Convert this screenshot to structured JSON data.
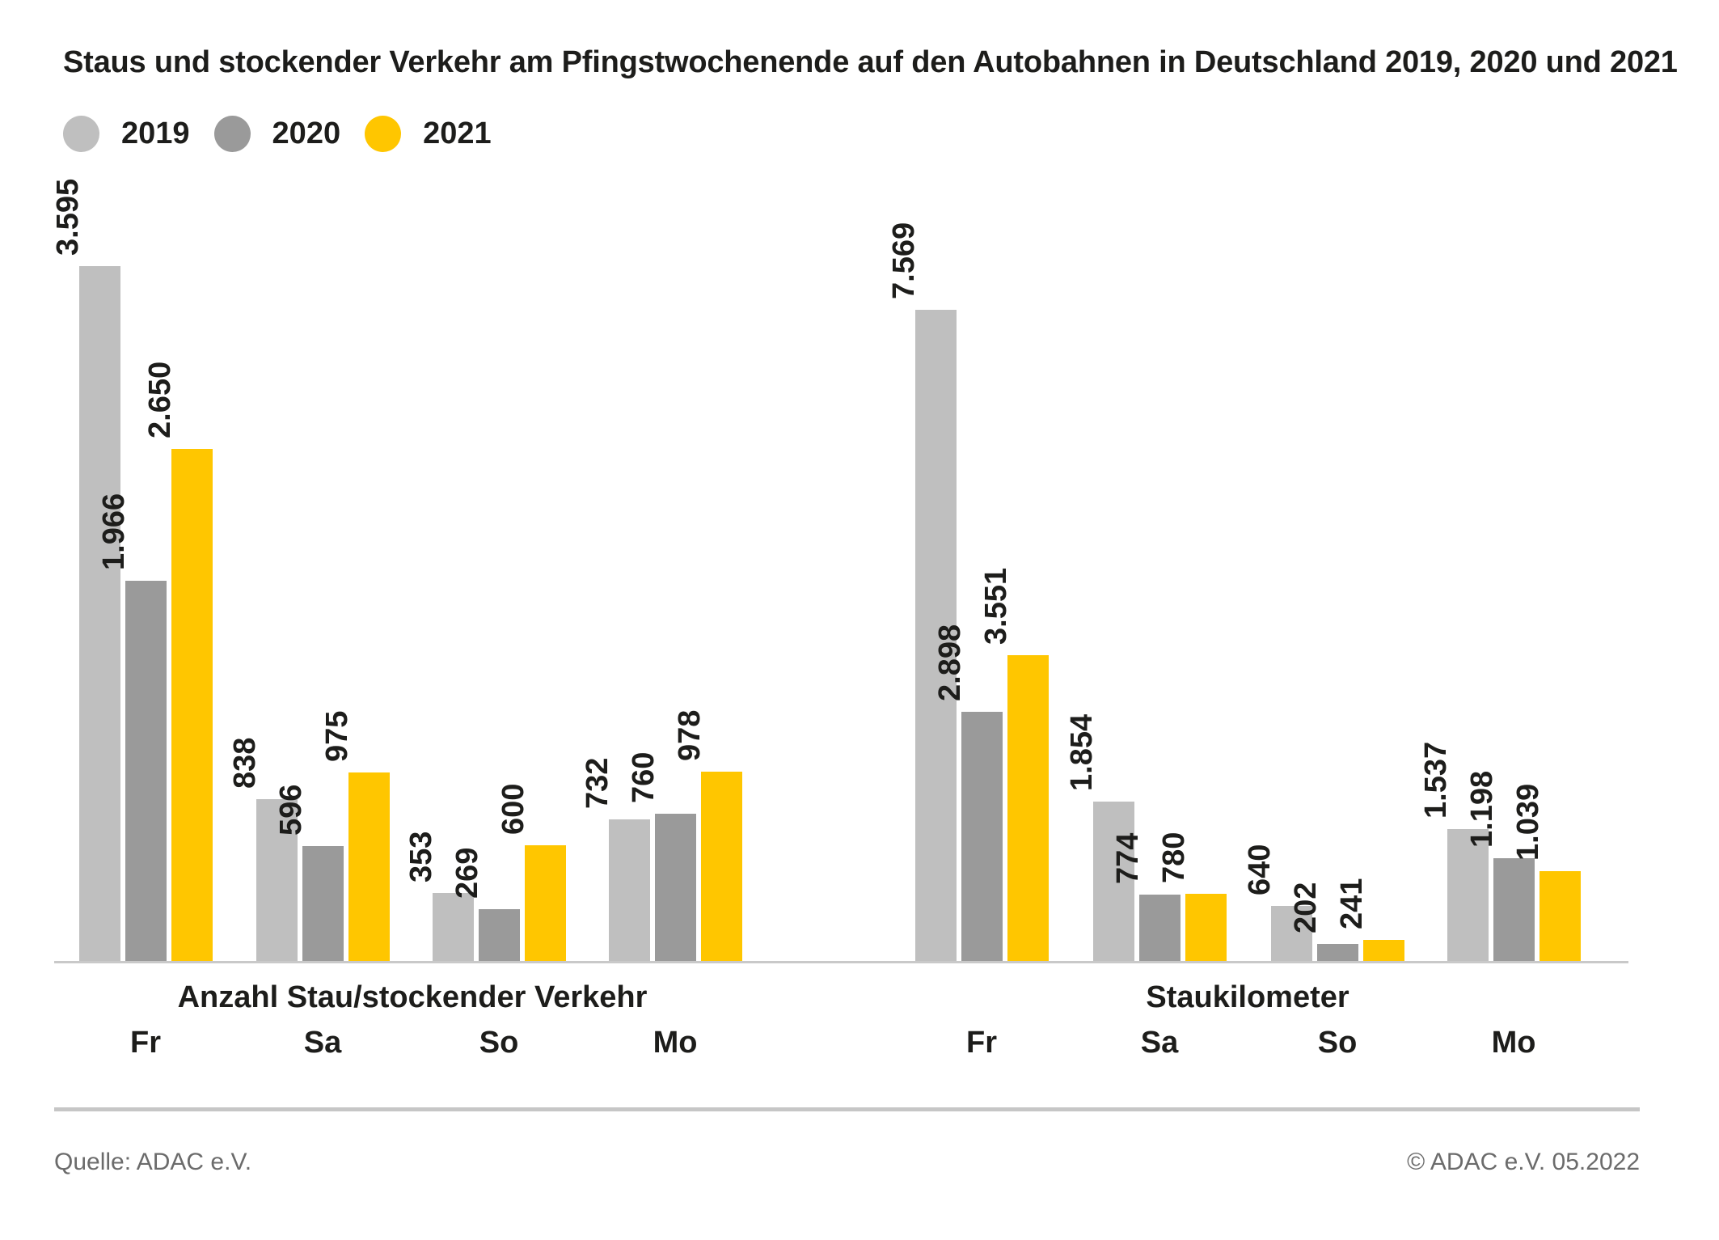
{
  "title": "Staus und stockender Verkehr am Pfingstwochenende auf den Autobahnen in Deutschland 2019, 2020 und 2021",
  "colors": {
    "2019": "#bfbfbf",
    "2020": "#9a9a9a",
    "2021": "#ffc600",
    "axis": "#c9c9c9",
    "text": "#1d1d1b",
    "muted": "#6b6b6b"
  },
  "legend": [
    "2019",
    "2020",
    "2021"
  ],
  "chart_data": [
    {
      "type": "bar",
      "title": "Anzahl Stau/stockender Verkehr",
      "categories": [
        "Fr",
        "Sa",
        "So",
        "Mo"
      ],
      "series": [
        {
          "name": "2019",
          "values": [
            3595,
            838,
            353,
            732
          ],
          "labels": [
            "3.595",
            "838",
            "353",
            "732"
          ]
        },
        {
          "name": "2020",
          "values": [
            1966,
            596,
            269,
            760
          ],
          "labels": [
            "1.966",
            "596",
            "269",
            "760"
          ]
        },
        {
          "name": "2021",
          "values": [
            2650,
            975,
            600,
            978
          ],
          "labels": [
            "2.650",
            "975",
            "600",
            "978"
          ]
        }
      ],
      "legend_position": "top-left",
      "grid": false
    },
    {
      "type": "bar",
      "title": "Staukilometer",
      "categories": [
        "Fr",
        "Sa",
        "So",
        "Mo"
      ],
      "series": [
        {
          "name": "2019",
          "values": [
            7569,
            1854,
            640,
            1537
          ],
          "labels": [
            "7.569",
            "1.854",
            "640",
            "1.537"
          ]
        },
        {
          "name": "2020",
          "values": [
            2898,
            774,
            202,
            1198
          ],
          "labels": [
            "2.898",
            "774",
            "202",
            "1.198"
          ]
        },
        {
          "name": "2021",
          "values": [
            3551,
            780,
            241,
            1039
          ],
          "labels": [
            "3.551",
            "780",
            "241",
            "1.039"
          ]
        }
      ],
      "legend_position": "top-left",
      "grid": false
    }
  ],
  "footer": {
    "source": "Quelle: ADAC e.V.",
    "copyright": "© ADAC e.V. 05.2022"
  }
}
